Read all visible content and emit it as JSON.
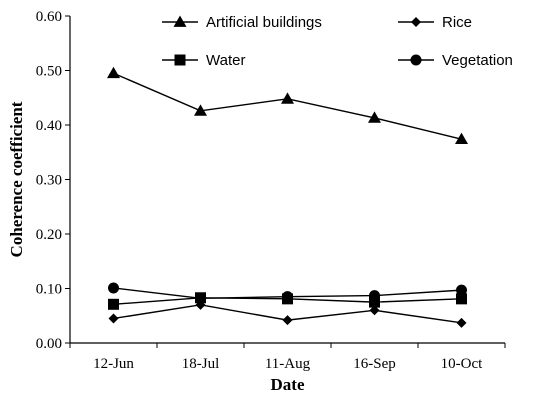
{
  "chart_data": {
    "type": "line",
    "title": "",
    "xlabel": "Date",
    "ylabel": "Coherence coefficient",
    "categories": [
      "12-Jun",
      "18-Jul",
      "11-Aug",
      "16-Sep",
      "10-Oct"
    ],
    "ylim": [
      0,
      0.6
    ],
    "yticks": [
      "0.00",
      "0.10",
      "0.20",
      "0.30",
      "0.40",
      "0.50",
      "0.60"
    ],
    "grid": false,
    "legend": "top, two columns, no frame",
    "series": [
      {
        "name": "Artificial buildings",
        "marker": "triangle",
        "color": "#000000",
        "values": [
          0.495,
          0.426,
          0.448,
          0.413,
          0.374
        ]
      },
      {
        "name": "Rice",
        "marker": "diamond",
        "color": "#000000",
        "values": [
          0.045,
          0.07,
          0.042,
          0.06,
          0.037
        ]
      },
      {
        "name": "Water",
        "marker": "square",
        "color": "#000000",
        "values": [
          0.071,
          0.083,
          0.081,
          0.075,
          0.081
        ]
      },
      {
        "name": "Vegetation",
        "marker": "circle",
        "color": "#000000",
        "values": [
          0.101,
          0.082,
          0.085,
          0.087,
          0.097
        ]
      }
    ]
  }
}
